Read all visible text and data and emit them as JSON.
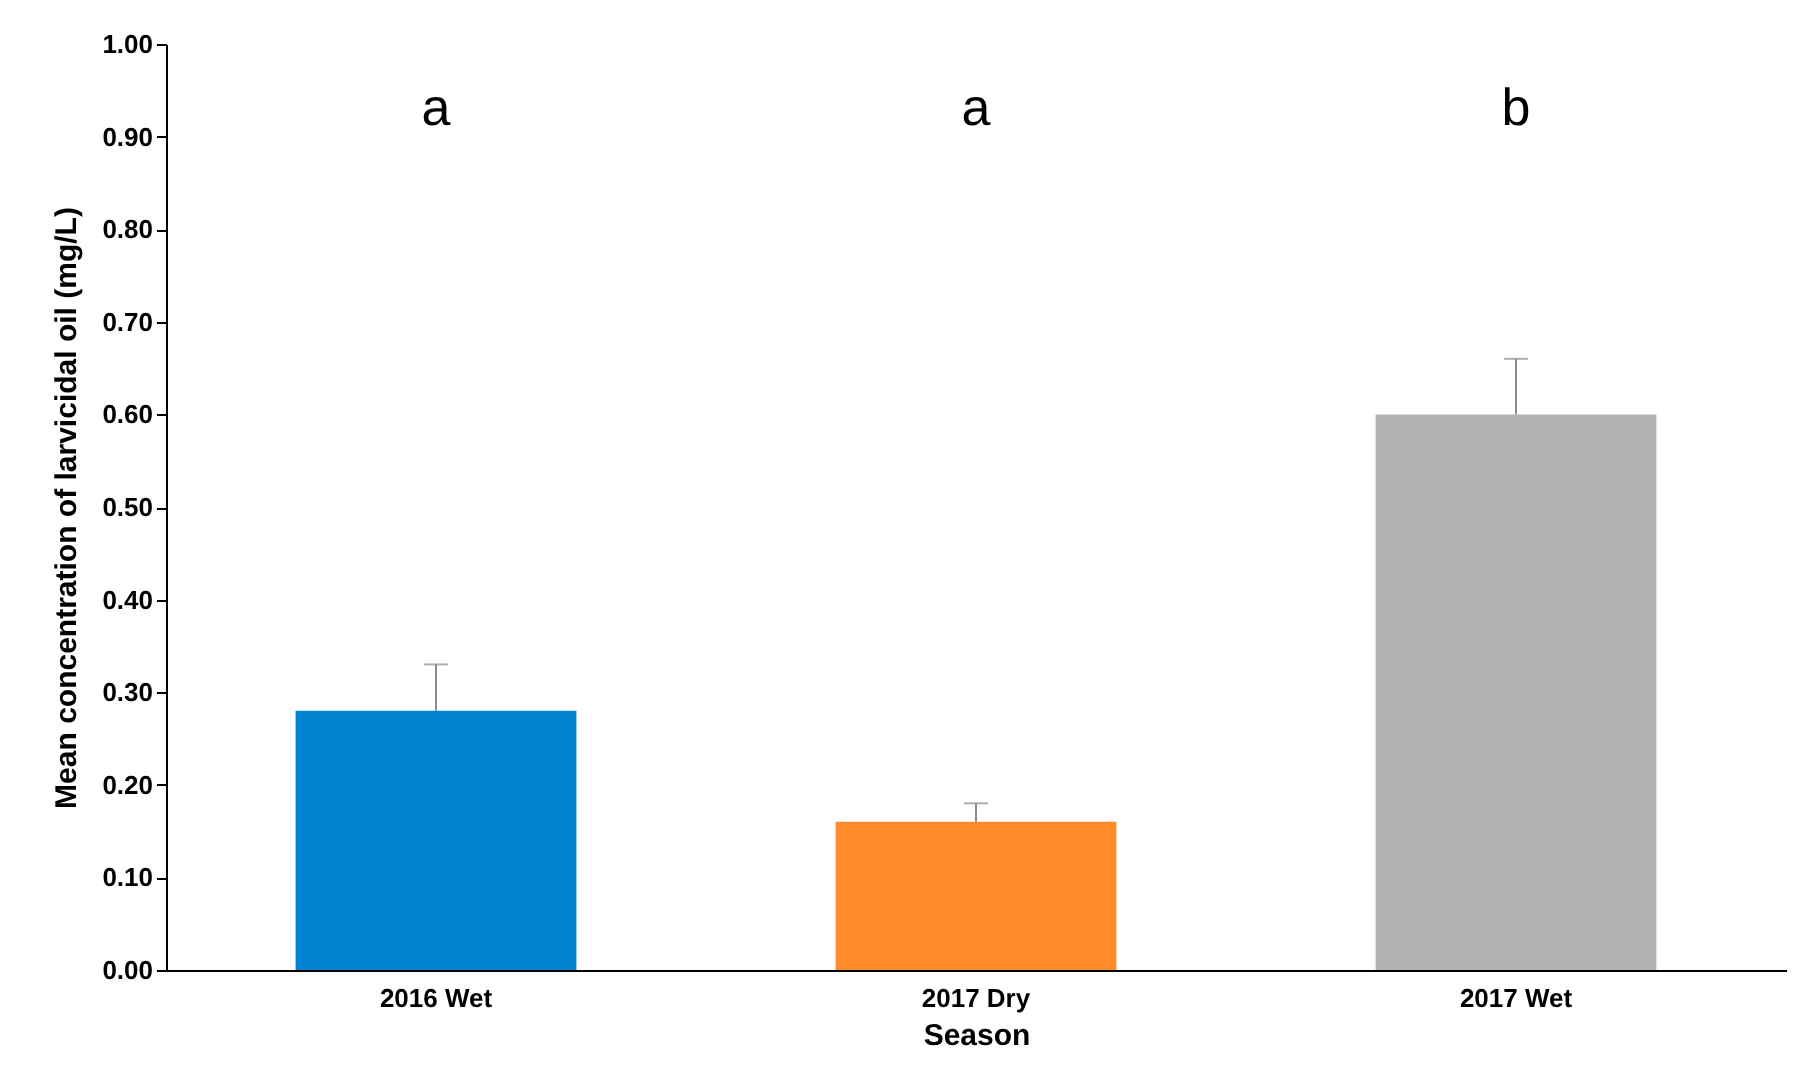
{
  "chart_data": {
    "type": "bar",
    "xlabel": "Season",
    "ylabel": "Mean concentration of larvicidal oil (mg/L)",
    "categories": [
      "2016 Wet",
      "2017 Dry",
      "2017 Wet"
    ],
    "values": [
      0.28,
      0.16,
      0.6
    ],
    "colors": [
      "#0084d1",
      "#ff8c2a",
      "#b3b3b3"
    ],
    "errors": [
      [
        0.28,
        0.33
      ],
      [
        0.16,
        0.18
      ],
      [
        0.6,
        0.66
      ]
    ],
    "ylim": [
      0,
      1
    ],
    "yticks": [
      {
        "value": 0,
        "label": "0.00"
      },
      {
        "value": 0.1,
        "label": "0.10"
      },
      {
        "value": 0.2,
        "label": "0.20"
      },
      {
        "value": 0.3,
        "label": "0.30"
      },
      {
        "value": 0.4,
        "label": "0.40"
      },
      {
        "value": 0.5,
        "label": "0.50"
      },
      {
        "value": 0.6,
        "label": "0.60"
      },
      {
        "value": 0.7,
        "label": "0.70"
      },
      {
        "value": 0.8,
        "label": "0.80"
      },
      {
        "value": 0.9,
        "label": "0.90"
      },
      {
        "value": 1,
        "label": "1.00"
      }
    ],
    "annotations": [
      "a",
      "a",
      "b"
    ]
  }
}
